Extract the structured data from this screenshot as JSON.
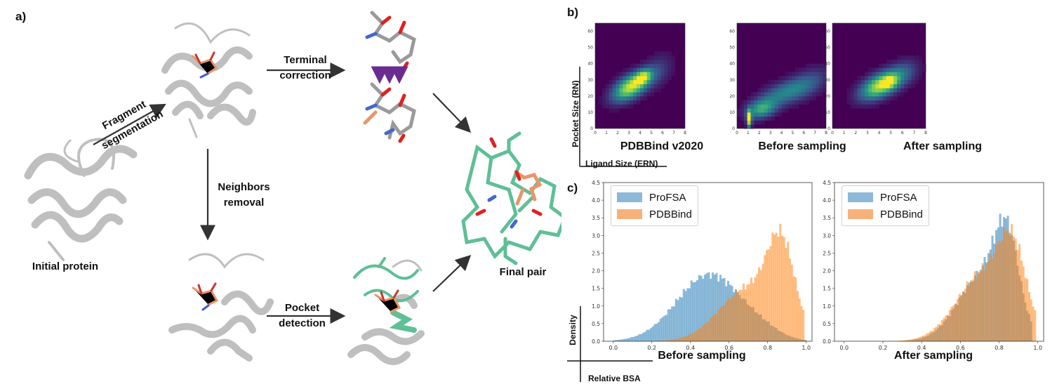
{
  "panel_labels": {
    "a": "a)",
    "b": "b)",
    "c": "c)"
  },
  "workflow": {
    "initial_protein": "Initial protein",
    "fragment_segmentation": [
      "Fragment",
      "segmentation"
    ],
    "terminal_correction": [
      "Terminal",
      "correction"
    ],
    "neighbors_removal": [
      "Neighbors",
      "removal"
    ],
    "pocket_detection": [
      "Pocket",
      "detection"
    ],
    "final_pair": "Final pair"
  },
  "colors": {
    "heat_bg": "#440154",
    "blue": "#1f77b4",
    "orange": "#ff7f0e",
    "ribbon": "#c8c8c8",
    "pocket_green": "#5fbf96",
    "ligand_orange": "#e8956b",
    "arrow_purple": "#6a2c91"
  },
  "heatmap_axes": {
    "ylabel": "Pocket Size (RN)",
    "xlabel": "Ligand Size (ERN)"
  },
  "hist_axes": {
    "ylabel": "Density",
    "xlabel": "Relative BSA"
  },
  "chart_data": [
    {
      "type": "heatmap",
      "title": "PDBBind v2020",
      "xlim": [
        0,
        8
      ],
      "ylim": [
        0,
        65
      ],
      "x_ticks": [
        "0",
        "1",
        "2",
        "3",
        "4",
        "5",
        "6",
        "7",
        "8"
      ],
      "y_ticks": [
        "0",
        "10",
        "20",
        "30",
        "40",
        "50",
        "60"
      ],
      "blobs": [
        {
          "x": 3.2,
          "y": 26,
          "sx": 1.1,
          "sy": 6,
          "rho": 0.55,
          "a": 0.95
        },
        {
          "x": 4.3,
          "y": 32,
          "sx": 0.5,
          "sy": 3,
          "rho": 0.3,
          "a": 0.55
        },
        {
          "x": 5.6,
          "y": 36,
          "sx": 0.9,
          "sy": 7,
          "rho": 0.3,
          "a": 0.18
        }
      ]
    },
    {
      "type": "heatmap",
      "title": "Before sampling",
      "xlim": [
        0,
        8
      ],
      "ylim": [
        0,
        65
      ],
      "x_ticks": [
        "0",
        "1",
        "2",
        "3",
        "4",
        "5",
        "6",
        "7",
        "8"
      ],
      "y_ticks": [
        "0",
        "10",
        "20",
        "30",
        "40",
        "50",
        "60"
      ],
      "blobs": [
        {
          "x": 1.1,
          "y": 6,
          "sx": 0.15,
          "sy": 3.5,
          "rho": 0,
          "a": 1.0
        },
        {
          "x": 2.2,
          "y": 12,
          "sx": 0.9,
          "sy": 4,
          "rho": 0.3,
          "a": 0.55
        },
        {
          "x": 4.2,
          "y": 22,
          "sx": 1.6,
          "sy": 6,
          "rho": 0.6,
          "a": 0.4
        },
        {
          "x": 6.4,
          "y": 28,
          "sx": 1.3,
          "sy": 7,
          "rho": 0.5,
          "a": 0.22
        }
      ]
    },
    {
      "type": "heatmap",
      "title": "After sampling",
      "xlim": [
        0,
        8
      ],
      "ylim": [
        0,
        65
      ],
      "x_ticks": [
        "0",
        "1",
        "2",
        "3",
        "4",
        "5",
        "6",
        "7",
        "8"
      ],
      "y_ticks": [
        "0",
        "10",
        "20",
        "30",
        "40",
        "50",
        "60"
      ],
      "blobs": [
        {
          "x": 4.2,
          "y": 27,
          "sx": 1.2,
          "sy": 6,
          "rho": 0.55,
          "a": 0.95
        },
        {
          "x": 4.9,
          "y": 29,
          "sx": 0.4,
          "sy": 2.5,
          "rho": 0.2,
          "a": 0.4
        },
        {
          "x": 6.2,
          "y": 35,
          "sx": 0.9,
          "sy": 6,
          "rho": 0.3,
          "a": 0.18
        }
      ]
    },
    {
      "type": "bar",
      "title": "Before sampling",
      "xlim": [
        -0.05,
        1.03
      ],
      "ylim": [
        0,
        4.5
      ],
      "x_ticks": [
        "0.0",
        "0.2",
        "0.4",
        "0.6",
        "0.8",
        "1.0"
      ],
      "y_ticks": [
        "0.0",
        "0.5",
        "1.0",
        "1.5",
        "2.0",
        "2.5",
        "3.0",
        "3.5",
        "4.0",
        "4.5"
      ],
      "legend": "top-left",
      "series": [
        {
          "name": "ProFSA",
          "color": "#1f77b4",
          "components": [
            {
              "mu": 0.5,
              "sd": 0.17,
              "w": 1.9
            },
            {
              "mu": 0.78,
              "sd": 0.09,
              "w": 0.15
            }
          ],
          "range": [
            0.0,
            1.0
          ]
        },
        {
          "name": "PDBBind",
          "color": "#ff7f0e",
          "components": [
            {
              "mu": 0.87,
              "sd": 0.07,
              "w": 2.3
            },
            {
              "mu": 0.7,
              "sd": 0.15,
              "w": 1.5
            }
          ],
          "range": [
            0.2,
            0.99
          ]
        }
      ]
    },
    {
      "type": "bar",
      "title": "After sampling",
      "xlim": [
        -0.05,
        1.03
      ],
      "ylim": [
        0,
        4.5
      ],
      "x_ticks": [
        "0.0",
        "0.2",
        "0.4",
        "0.6",
        "0.8",
        "1.0"
      ],
      "y_ticks": [
        "0.0",
        "0.5",
        "1.0",
        "1.5",
        "2.0",
        "2.5",
        "3.0",
        "3.5",
        "4.0",
        "4.5"
      ],
      "legend": "top-left",
      "series": [
        {
          "name": "ProFSA",
          "color": "#1f77b4",
          "components": [
            {
              "mu": 0.84,
              "sd": 0.06,
              "w": 2.2
            },
            {
              "mu": 0.72,
              "sd": 0.13,
              "w": 1.9
            }
          ],
          "range": [
            0.0,
            0.97
          ]
        },
        {
          "name": "PDBBind",
          "color": "#ff7f0e",
          "components": [
            {
              "mu": 0.87,
              "sd": 0.07,
              "w": 2.0
            },
            {
              "mu": 0.72,
              "sd": 0.14,
              "w": 1.9
            }
          ],
          "range": [
            0.2,
            0.99
          ]
        }
      ]
    }
  ]
}
